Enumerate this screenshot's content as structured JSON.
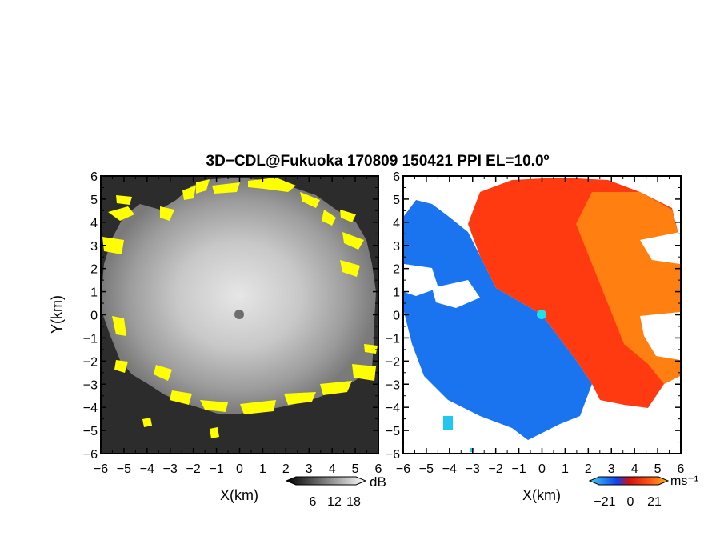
{
  "chart_data": {
    "type": "heatmap",
    "title": "3D−CDL@Fukuoka 170809 150421 PPI EL=10.0º",
    "xlabel": "X(km)",
    "ylabel": "Y(km)",
    "xlim": [
      -6,
      6
    ],
    "ylim": [
      -6,
      6
    ],
    "x_ticks": [
      "−6",
      "−5",
      "−4",
      "−3",
      "−2",
      "−1",
      "0",
      "1",
      "2",
      "3",
      "4",
      "5",
      "6"
    ],
    "y_ticks": [
      "6",
      "5",
      "4",
      "3",
      "2",
      "1",
      "0",
      "−1",
      "−2",
      "−3",
      "−4",
      "−5",
      "−6"
    ],
    "panels": [
      {
        "quantity": "signal intensity",
        "colormap": "grayscale",
        "highlight_color": "#ffff00",
        "colorbar": {
          "unit": "dB",
          "ticks": [
            "6",
            "12",
            "18"
          ],
          "range": [
            0,
            24
          ]
        }
      },
      {
        "quantity": "Doppler velocity",
        "colormap": "blue-to-red",
        "colorbar": {
          "unit": "ms⁻¹",
          "ticks": [
            "−21",
            "0",
            "21"
          ],
          "range": [
            -21,
            21
          ]
        }
      }
    ]
  },
  "colors": {
    "blue": "#1a74f0",
    "red": "#ff3a10",
    "orange": "#ff8c10",
    "cyan": "#20c8f0",
    "gray_bg": "#2a2a2a"
  }
}
